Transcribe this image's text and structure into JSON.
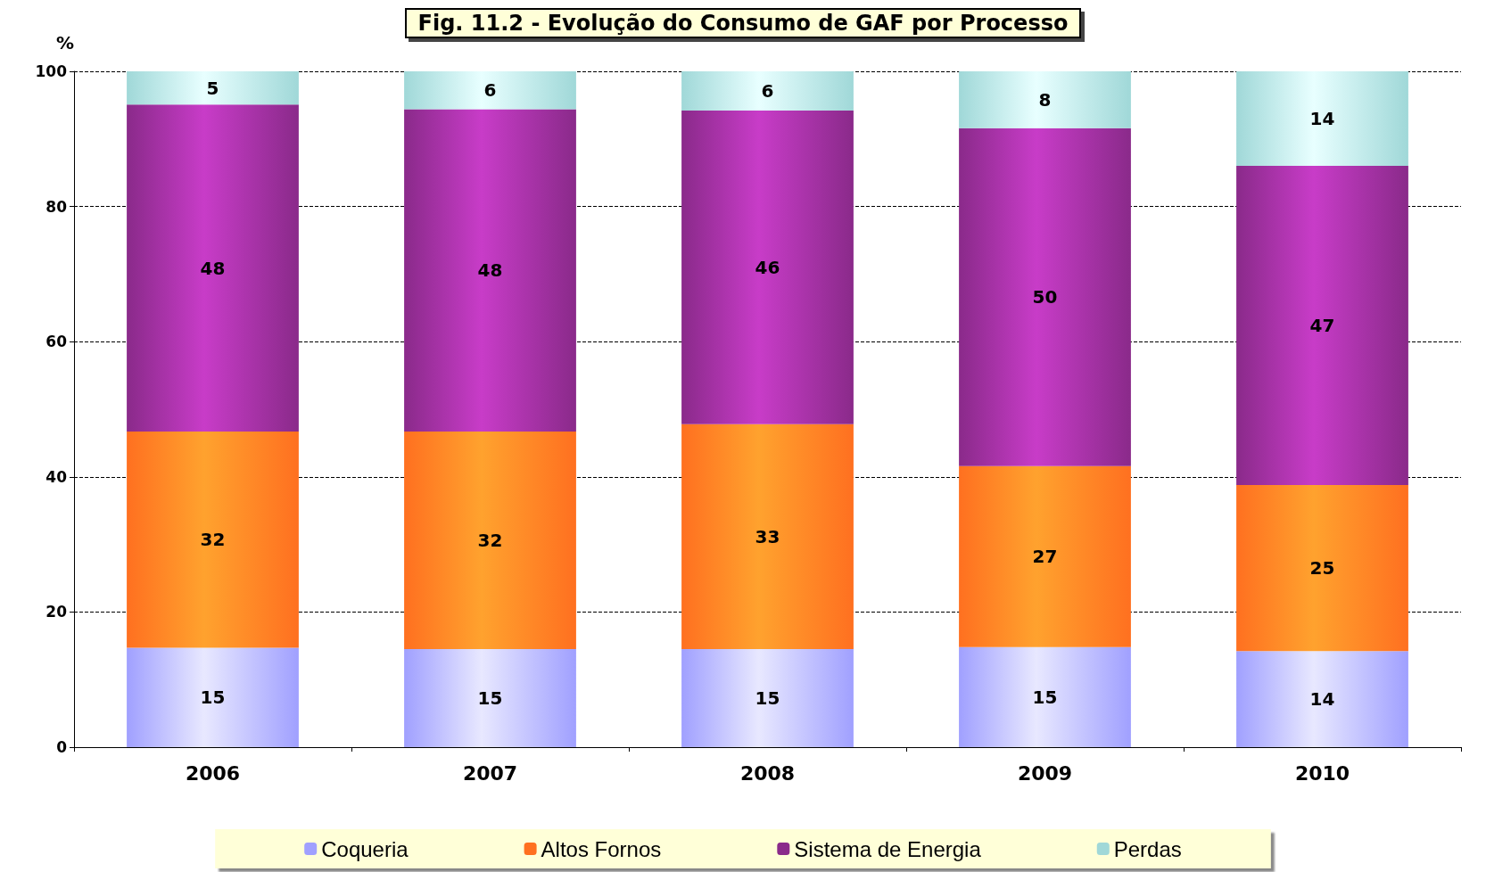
{
  "chart_data": {
    "type": "bar",
    "title": "Fig. 11.2 - Evolução do Consumo de GAF por Processo",
    "ylabel": "%",
    "categories": [
      "2006",
      "2007",
      "2008",
      "2009",
      "2010"
    ],
    "stacked": true,
    "ylim": [
      0,
      100
    ],
    "yticks": [
      0,
      20,
      40,
      60,
      80,
      100
    ],
    "grid": "y",
    "legend": "bottom",
    "series": [
      {
        "name": "Coqueria",
        "color": "#a0a0ff",
        "values": [
          14.7,
          14.5,
          14.5,
          14.8,
          14.2
        ],
        "value_labels": [
          "15",
          "15",
          "15",
          "15",
          "14"
        ]
      },
      {
        "name": "Altos Fornos",
        "color": "#ff7020",
        "values": [
          32.0,
          32.2,
          33.3,
          26.8,
          24.6
        ],
        "value_labels": [
          "32",
          "32",
          "33",
          "27",
          "25"
        ]
      },
      {
        "name": "Sistema de Energia",
        "color": "#8a2a8a",
        "values": [
          48.4,
          47.7,
          46.4,
          50.0,
          47.2
        ],
        "value_labels": [
          "48",
          "48",
          "46",
          "50",
          "47"
        ]
      },
      {
        "name": "Perdas",
        "color": "#a0d8d8",
        "values": [
          4.9,
          5.6,
          5.8,
          8.4,
          14.0
        ],
        "value_labels": [
          "5",
          "6",
          "6",
          "8",
          "14"
        ]
      }
    ]
  }
}
